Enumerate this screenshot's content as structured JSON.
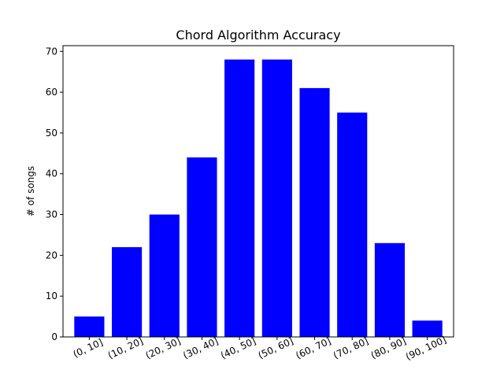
{
  "chart_data": {
    "type": "bar",
    "title": "Chord Algorithm Accuracy",
    "xlabel": "",
    "ylabel": "# of songs",
    "categories": [
      "(0, 10]",
      "(10, 20]",
      "(20, 30]",
      "(30, 40]",
      "(40, 50]",
      "(50, 60]",
      "(60, 70]",
      "(70, 80]",
      "(80, 90]",
      "(90, 100]"
    ],
    "values": [
      5,
      22,
      30,
      44,
      68,
      68,
      61,
      55,
      23,
      4
    ],
    "ylim": [
      0,
      71.4
    ],
    "yticks": [
      0,
      10,
      20,
      30,
      40,
      50,
      60,
      70
    ],
    "ytick_labels": [
      "0",
      "10",
      "20",
      "30",
      "40",
      "50",
      "60",
      "70"
    ],
    "bar_color": "#0000ff",
    "grid": false,
    "legend": "none"
  }
}
